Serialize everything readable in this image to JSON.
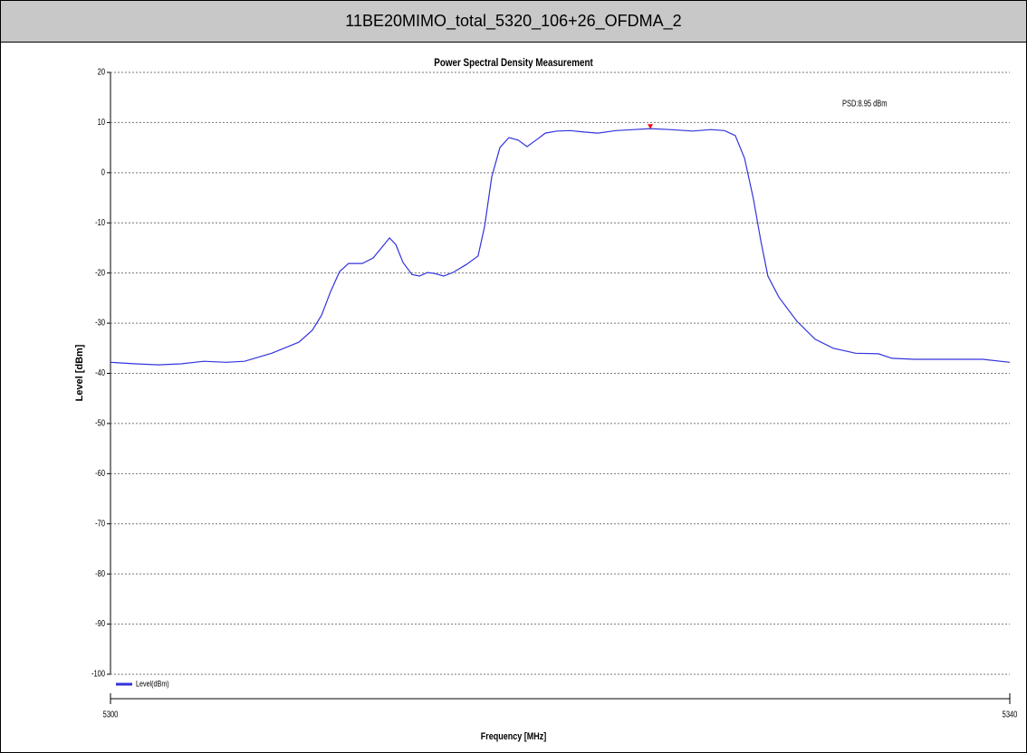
{
  "header": {
    "title": "11BE20MIMO_total_5320_106+26_OFDMA_2"
  },
  "chart_data": {
    "type": "line",
    "title": "Power Spectral Density Measurement",
    "xlabel": "Frequency [MHz]",
    "ylabel": "Level [dBm]",
    "xlim": [
      5300,
      5340
    ],
    "xticks": [
      5300,
      5340
    ],
    "ylim": [
      -100,
      20
    ],
    "yticks": [
      -100,
      -90,
      -80,
      -70,
      -60,
      -50,
      -40,
      -30,
      -20,
      -10,
      0,
      10,
      20
    ],
    "grid": true,
    "legend": "lower left",
    "x": [
      5300,
      5301.13,
      5302.13,
      5303.14,
      5304.15,
      5305.16,
      5305.96,
      5307.17,
      5308.38,
      5308.98,
      5309.39,
      5309.79,
      5310.19,
      5310.59,
      5311.2,
      5311.68,
      5312.09,
      5312.41,
      5312.69,
      5313.01,
      5313.41,
      5313.74,
      5314.1,
      5314.42,
      5314.82,
      5315.23,
      5315.83,
      5316.35,
      5316.64,
      5316.96,
      5317.32,
      5317.72,
      5318.13,
      5318.53,
      5318.93,
      5319.34,
      5319.86,
      5320.46,
      5321.07,
      5321.67,
      5322.48,
      5323.28,
      5324.01,
      5324.89,
      5325.9,
      5326.71,
      5327.31,
      5327.79,
      5328.2,
      5328.6,
      5328.92,
      5329.24,
      5329.73,
      5330.53,
      5331.34,
      5332.15,
      5333.15,
      5334.16,
      5334.76,
      5335.77,
      5337.38,
      5338.79,
      5340
    ],
    "series": [
      {
        "name": "Level(dBm)",
        "color": "#3333dd",
        "values": [
          -37.8,
          -38.1,
          -38.3,
          -38.1,
          -37.6,
          -37.8,
          -37.6,
          -36,
          -33.8,
          -31.4,
          -28.4,
          -23.7,
          -19.7,
          -18.1,
          -18.1,
          -17,
          -14.8,
          -13,
          -14.3,
          -17.9,
          -20.3,
          -20.6,
          -19.9,
          -20.1,
          -20.6,
          -19.9,
          -18.3,
          -16.6,
          -10.7,
          -0.8,
          5,
          7,
          6.5,
          5.2,
          6.5,
          7.9,
          8.3,
          8.4,
          8.1,
          7.9,
          8.4,
          8.6,
          8.8,
          8.6,
          8.3,
          8.6,
          8.4,
          7.4,
          2.9,
          -5.3,
          -13.4,
          -20.6,
          -24.8,
          -29.6,
          -33.2,
          -35,
          -36,
          -36.1,
          -37,
          -37.2,
          -37.2,
          -37.2,
          -37.8
        ]
      }
    ],
    "marker": {
      "x": 5324.01,
      "y": 8.95,
      "color": "#ff0000",
      "label": "PSD:8.95 dBm"
    }
  }
}
